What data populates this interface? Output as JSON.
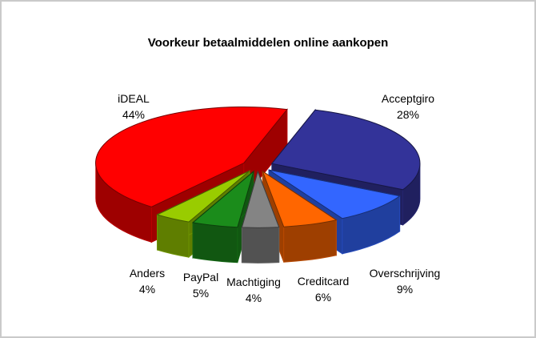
{
  "frame": {
    "background": "#FFFFFF",
    "border_color": "#CACACA"
  },
  "chart_data": {
    "type": "pie",
    "style": "3d-exploded",
    "title": "Voorkeur betaalmiddelen online aankopen",
    "legend": "none",
    "label_format": "name-and-percent",
    "start_angle_deg": 17,
    "explode": 0.105,
    "slices": [
      {
        "label": "Acceptgiro",
        "value": 28,
        "percent_text": "28%",
        "color": "#333399"
      },
      {
        "label": "Overschrijving",
        "value": 9,
        "percent_text": "9%",
        "color": "#3366FF"
      },
      {
        "label": "Creditcard",
        "value": 6,
        "percent_text": "6%",
        "color": "#FF6600"
      },
      {
        "label": "Machtiging",
        "value": 4,
        "percent_text": "4%",
        "color": "#848484"
      },
      {
        "label": "PayPal",
        "value": 5,
        "percent_text": "5%",
        "color": "#1B8C1B"
      },
      {
        "label": "Anders",
        "value": 4,
        "percent_text": "4%",
        "color": "#99CC00"
      },
      {
        "label": "iDEAL",
        "value": 44,
        "percent_text": "44%",
        "color": "#FF0000"
      }
    ]
  }
}
